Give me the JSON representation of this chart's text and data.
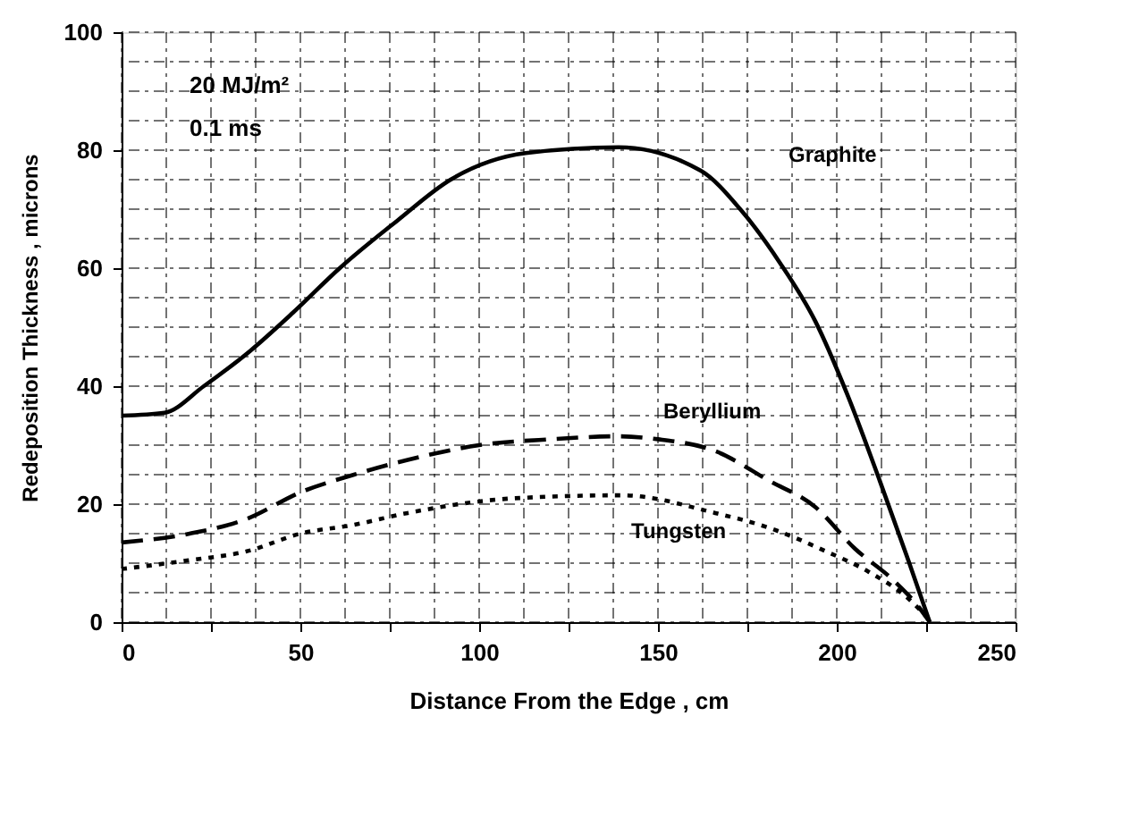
{
  "chart_data": {
    "type": "line",
    "xlabel": "Distance From the Edge , cm",
    "ylabel": "Redeposition Thickness , microns",
    "annotations": [
      "20  MJ/m²",
      "0.1  ms"
    ],
    "xlim": [
      0,
      250
    ],
    "ylim": [
      0,
      100
    ],
    "xticks": [
      0,
      {
        "value": 12.5,
        "label": null
      },
      {
        "value": 25,
        "label": null
      },
      {
        "value": 37.5,
        "label": null
      },
      50,
      {
        "value": 62.5,
        "label": null
      },
      {
        "value": 75,
        "label": null
      },
      {
        "value": 87.5,
        "label": null
      },
      100,
      {
        "value": 112.5,
        "label": null
      },
      {
        "value": 125,
        "label": null
      },
      {
        "value": 137.5,
        "label": null
      },
      150,
      {
        "value": 162.5,
        "label": null
      },
      {
        "value": 175,
        "label": null
      },
      {
        "value": 187.5,
        "label": null
      },
      200,
      {
        "value": 212.5,
        "label": null
      },
      {
        "value": 225,
        "label": null
      },
      {
        "value": 237.5,
        "label": null
      },
      250
    ],
    "yticks": [
      0,
      {
        "value": 5,
        "label": null
      },
      {
        "value": 10,
        "label": null
      },
      {
        "value": 15,
        "label": null
      },
      20,
      {
        "value": 25,
        "label": null
      },
      {
        "value": 30,
        "label": null
      },
      {
        "value": 35,
        "label": null
      },
      40,
      {
        "value": 45,
        "label": null
      },
      {
        "value": 50,
        "label": null
      },
      {
        "value": 55,
        "label": null
      },
      60,
      {
        "value": 65,
        "label": null
      },
      {
        "value": 70,
        "label": null
      },
      {
        "value": 75,
        "label": null
      },
      80,
      {
        "value": 85,
        "label": null
      },
      {
        "value": 90,
        "label": null
      },
      {
        "value": 95,
        "label": null
      },
      100
    ],
    "grid": true,
    "legend": false,
    "marker": "none",
    "series": [
      {
        "name": "Graphite",
        "color": "#000000",
        "line_style": "solid",
        "x": [
          0,
          12,
          23,
          36,
          48,
          61,
          77,
          92,
          113,
          139,
          162,
          173,
          184,
          194,
          203,
          212,
          220,
          226
        ],
        "values": [
          35,
          35.5,
          40,
          46,
          52.5,
          60,
          68,
          75,
          79.5,
          80.5,
          76.5,
          70,
          61,
          51,
          38.5,
          24,
          10.5,
          0
        ]
      },
      {
        "name": "Beryllium",
        "color": "#000000",
        "line_style": "dashed",
        "x": [
          0,
          19,
          35,
          50,
          65,
          80,
          100,
          120,
          139,
          150,
          166,
          181,
          194,
          205,
          216,
          223,
          226
        ],
        "values": [
          13.5,
          15,
          17.5,
          22,
          25,
          27.5,
          30,
          31,
          31.5,
          31,
          29,
          24,
          19.5,
          12.5,
          7,
          2.5,
          0
        ]
      },
      {
        "name": "Tungsten",
        "color": "#000000",
        "line_style": "dotted",
        "x": [
          0,
          19,
          35,
          50,
          65,
          80,
          110,
          140,
          166,
          181,
          197,
          209,
          220,
          225
        ],
        "values": [
          9,
          10.5,
          12,
          15,
          16.5,
          18.5,
          21,
          21.5,
          18.5,
          16,
          12,
          8.5,
          4,
          1
        ]
      }
    ]
  }
}
